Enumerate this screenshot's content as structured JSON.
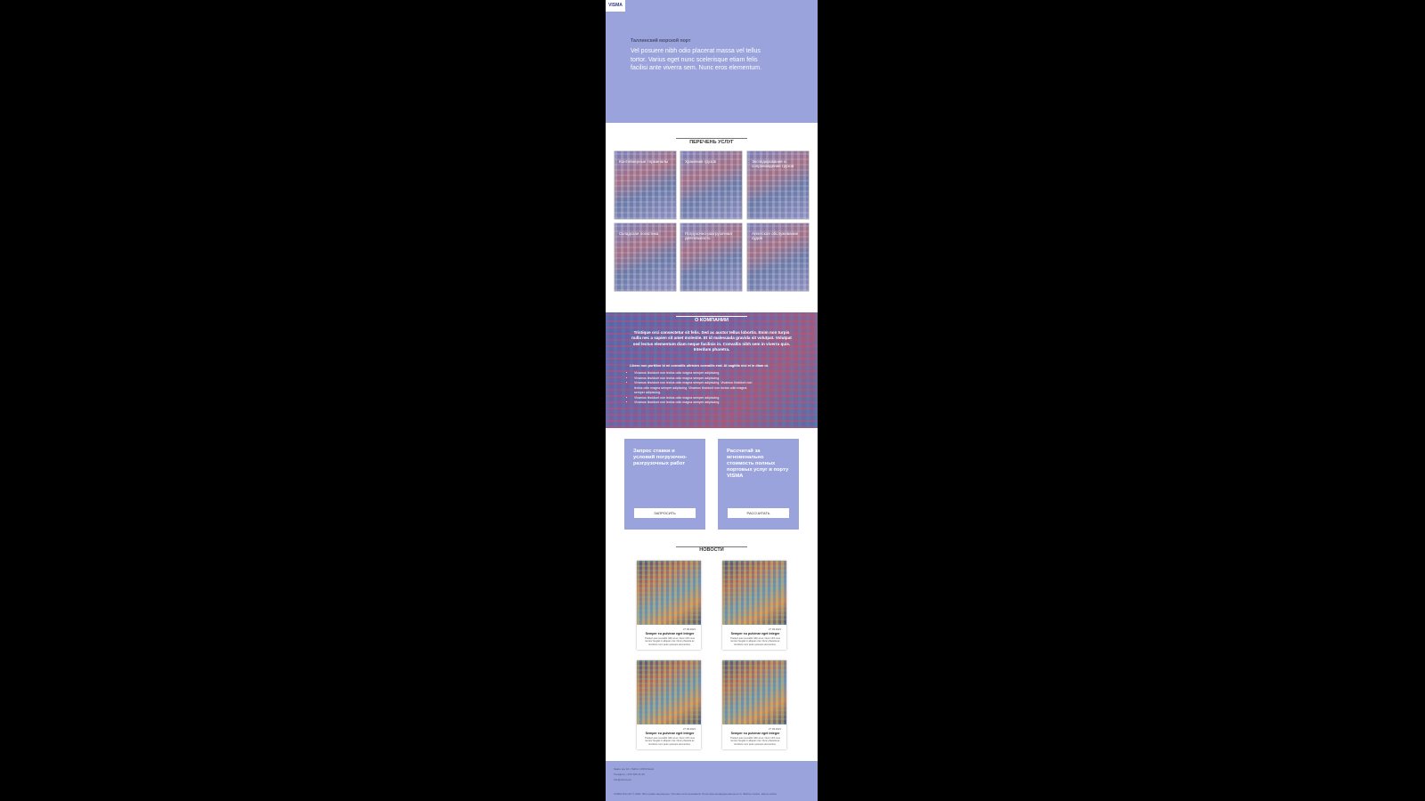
{
  "brand": {
    "logo_text": "VISMA"
  },
  "hero": {
    "eyebrow": "Таллинский морской порт",
    "text": "Vel posuere nibh odio placerat massa vel tellus tortor. Varius eget nunc scelerisque etiam felis facilisi ante viverra sem. Nunc eros elementum."
  },
  "services": {
    "title": "ПЕРЕЧЕНЬ УСЛУГ",
    "items": [
      {
        "label": "Контейнерные терминалы"
      },
      {
        "label": "Хранение грузов"
      },
      {
        "label": "Экспедирование и сопровождение грузов"
      },
      {
        "label": "Складская логистика"
      },
      {
        "label": "Погрузочно-разгрузочная деятельность"
      },
      {
        "label": "Агентское обслуживание судов"
      }
    ]
  },
  "about": {
    "title": "О КОМПАНИИ",
    "lead": "Tristique orci consectetur sit felis. Sed ac auctor tellus lobortis. Enim non turpis nulla nec a sapien sit amet molestie. Et id malesuada gravida sit volutpat. Volutpat sed lectus elementum diam neque facilisis in. Convallis nibh sem in viverra quis. Interdum pharetra.",
    "sub": "Libero non porttitor id mi convallis ultricies convallis erat. At sagittis nisl et in diam ut.",
    "bullets": [
      "Vivamus tincidunt non lectus odio magna semper adipiscing.",
      "Vivamus tincidunt non lectus odio magna semper adipiscing.",
      "Vivamus tincidunt non lectus odio magna semper adipiscing. Vivamus tincidunt non lectus odio magna semper adipiscing. Vivamus tincidunt non lectus odio magna semper adipiscing.",
      "Vivamus tincidunt non lectus odio magna semper adipiscing.",
      "Vivamus tincidunt non lectus odio magna semper adipiscing."
    ]
  },
  "cta": [
    {
      "title": "Запрос ставки и условий погрузочно-разгрузочных работ",
      "button": "ЗАПРОСИТЬ"
    },
    {
      "title": "Рассчитай за мгновенально стоимость полных портовых услуг в порту VISMA",
      "button": "РАССЧИТАТЬ"
    }
  ],
  "news": {
    "title": "НОВОСТИ",
    "items": [
      {
        "date": "27.09.2021",
        "title": "Semper eu pulvinar eget integer",
        "text": "Pretium quis convallis nibh at ac. Nunc nibh mus tempor feugiat in aliquam nisi. Nunc pharetra ac tincidunt nunc quam posuere elementum."
      },
      {
        "date": "27.09.2021",
        "title": "Semper eu pulvinar eget integer",
        "text": "Pretium quis convallis nibh at ac. Nunc nibh mus tempor feugiat in aliquam nisi. Nunc pharetra ac tincidunt nunc quam posuere elementum."
      },
      {
        "date": "27.09.2021",
        "title": "Semper eu pulvinar eget integer",
        "text": "Pretium quis convallis nibh at ac. Nunc nibh mus tempor feugiat in aliquam nisi. Nunc pharetra ac tincidunt nunc quam posuere elementum."
      },
      {
        "date": "27.09.2021",
        "title": "Semper eu pulvinar eget integer",
        "text": "Pretium quis convallis nibh at ac. Nunc nibh mus tempor feugiat in aliquam nisi. Nunc pharetra ac tincidunt nunc quam posuere elementum."
      }
    ]
  },
  "footer": {
    "line1": "Saare tee 10 • Tallinn 10152 Eesti",
    "line2": "Телефон: +372 605 11 00",
    "line3": "info@visma.ee",
    "legal": "VISMA Port AS © 2021. Все права защищены. Условия использования. Политика конфиденциальности. Файлы cookie. Карта сайта."
  },
  "colors": {
    "accent": "#9aa3db",
    "background": "#000000"
  }
}
